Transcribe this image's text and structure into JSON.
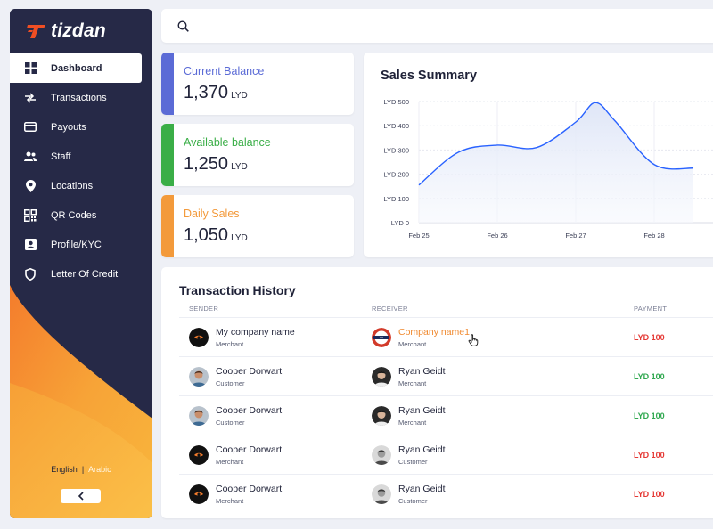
{
  "brand": {
    "name": "tizdan",
    "logo_color": "#f04e23"
  },
  "sidebar": {
    "items": [
      {
        "label": "Dashboard",
        "icon": "grid-icon",
        "active": true
      },
      {
        "label": "Transactions",
        "icon": "arrows-icon"
      },
      {
        "label": "Payouts",
        "icon": "card-icon"
      },
      {
        "label": "Staff",
        "icon": "people-icon"
      },
      {
        "label": "Locations",
        "icon": "pin-icon"
      },
      {
        "label": "QR Codes",
        "icon": "qr-icon"
      },
      {
        "label": "Profile/KYC",
        "icon": "id-card-icon"
      },
      {
        "label": "Letter Of Credit",
        "icon": "shield-icon"
      }
    ],
    "lang_english": "English",
    "lang_sep": "|",
    "lang_arabic": "Arabic"
  },
  "search": {
    "placeholder": ""
  },
  "stats": [
    {
      "label": "Current Balance",
      "value": "1,370",
      "unit": "LYD",
      "color": "#5b6bd6"
    },
    {
      "label": "Available balance",
      "value": "1,250",
      "unit": "LYD",
      "color": "#3aae47"
    },
    {
      "label": "Daily Sales",
      "value": "1,050",
      "unit": "LYD",
      "color": "#f39a3b"
    }
  ],
  "sales": {
    "title": "Sales Summary",
    "chart_data": {
      "type": "area",
      "x": [
        "Feb 25",
        "Feb 26",
        "Feb 27",
        "Feb 28"
      ],
      "y_ticks": [
        "LYD 0",
        "LYD 100",
        "LYD 200",
        "LYD 300",
        "LYD 400",
        "LYD 500"
      ],
      "ylim": [
        0,
        500
      ],
      "points": [
        {
          "x": 0.0,
          "y": 155
        },
        {
          "x": 0.5,
          "y": 290
        },
        {
          "x": 1.0,
          "y": 320
        },
        {
          "x": 1.5,
          "y": 310
        },
        {
          "x": 2.0,
          "y": 415
        },
        {
          "x": 2.25,
          "y": 495
        },
        {
          "x": 2.5,
          "y": 420
        },
        {
          "x": 3.0,
          "y": 240
        },
        {
          "x": 3.5,
          "y": 225
        }
      ],
      "line_color": "#2962ff",
      "grid": true
    }
  },
  "history": {
    "title": "Transaction History",
    "headers": {
      "sender": "SENDER",
      "receiver": "RECEIVER",
      "payment": "PAYMENT"
    },
    "rows": [
      {
        "sender": "My company name",
        "sender_role": "Merchant",
        "sender_avatar": "logo",
        "receiver": "Company name1",
        "receiver_role": "Merchant",
        "receiver_avatar": "badge",
        "receiver_highlight": true,
        "amount": "LYD 100",
        "direction": "out"
      },
      {
        "sender": "Cooper Dorwart",
        "sender_role": "Customer",
        "sender_avatar": "person-a",
        "receiver": "Ryan Geidt",
        "receiver_role": "Merchant",
        "receiver_avatar": "person-b",
        "amount": "LYD 100",
        "direction": "in"
      },
      {
        "sender": "Cooper Dorwart",
        "sender_role": "Customer",
        "sender_avatar": "person-a",
        "receiver": "Ryan Geidt",
        "receiver_role": "Merchant",
        "receiver_avatar": "person-b",
        "amount": "LYD 100",
        "direction": "in"
      },
      {
        "sender": "Cooper Dorwart",
        "sender_role": "Merchant",
        "sender_avatar": "logo",
        "receiver": "Ryan Geidt",
        "receiver_role": "Customer",
        "receiver_avatar": "person-c",
        "amount": "LYD 100",
        "direction": "out"
      },
      {
        "sender": "Cooper Dorwart",
        "sender_role": "Merchant",
        "sender_avatar": "logo",
        "receiver": "Ryan Geidt",
        "receiver_role": "Customer",
        "receiver_avatar": "person-c",
        "amount": "LYD 100",
        "direction": "out"
      }
    ],
    "colors": {
      "in": "#2fa84f",
      "out": "#e53935",
      "highlight": "#f0892f"
    }
  }
}
